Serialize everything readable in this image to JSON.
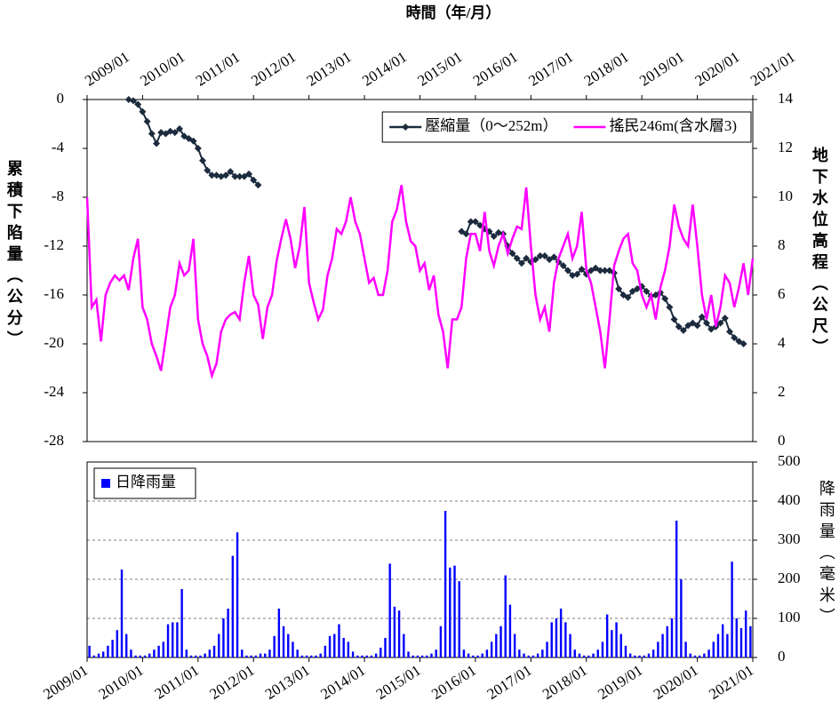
{
  "chart_data": [
    {
      "type": "line",
      "title": "時間（年/月）",
      "y_label": "累積下陷量（公分）",
      "y2_label": "地下水位高程（公尺）",
      "x": [
        "2009/01",
        "2009/02",
        "2009/03",
        "2009/04",
        "2009/05",
        "2009/06",
        "2009/07",
        "2009/08",
        "2009/09",
        "2009/10",
        "2009/11",
        "2009/12",
        "2010/01",
        "2010/02",
        "2010/03",
        "2010/04",
        "2010/05",
        "2010/06",
        "2010/07",
        "2010/08",
        "2010/09",
        "2010/10",
        "2010/11",
        "2010/12",
        "2011/01",
        "2011/02",
        "2011/03",
        "2011/04",
        "2011/05",
        "2011/06",
        "2011/07",
        "2011/08",
        "2011/09",
        "2011/10",
        "2011/11",
        "2011/12",
        "2012/01",
        "2012/02",
        "2012/03",
        "2012/04",
        "2012/05",
        "2012/06",
        "2012/07",
        "2012/08",
        "2012/09",
        "2012/10",
        "2012/11",
        "2012/12",
        "2013/01",
        "2013/02",
        "2013/03",
        "2013/04",
        "2013/05",
        "2013/06",
        "2013/07",
        "2013/08",
        "2013/09",
        "2013/10",
        "2013/11",
        "2013/12",
        "2014/01",
        "2014/02",
        "2014/03",
        "2014/04",
        "2014/05",
        "2014/06",
        "2014/07",
        "2014/08",
        "2014/09",
        "2014/10",
        "2014/11",
        "2014/12",
        "2015/01",
        "2015/02",
        "2015/03",
        "2015/04",
        "2015/05",
        "2015/06",
        "2015/07",
        "2015/08",
        "2015/09",
        "2015/10",
        "2015/11",
        "2015/12",
        "2016/01",
        "2016/02",
        "2016/03",
        "2016/04",
        "2016/05",
        "2016/06",
        "2016/07",
        "2016/08",
        "2016/09",
        "2016/10",
        "2016/11",
        "2016/12",
        "2017/01",
        "2017/02",
        "2017/03",
        "2017/04",
        "2017/05",
        "2017/06",
        "2017/07",
        "2017/08",
        "2017/09",
        "2017/10",
        "2017/11",
        "2017/12",
        "2018/01",
        "2018/02",
        "2018/03",
        "2018/04",
        "2018/05",
        "2018/06",
        "2018/07",
        "2018/08",
        "2018/09",
        "2018/10",
        "2018/11",
        "2018/12",
        "2019/01",
        "2019/02",
        "2019/03",
        "2019/04",
        "2019/05",
        "2019/06",
        "2019/07",
        "2019/08",
        "2019/09",
        "2019/10",
        "2019/11",
        "2019/12",
        "2020/01",
        "2020/02",
        "2020/03",
        "2020/04",
        "2020/05",
        "2020/06",
        "2020/07",
        "2020/08",
        "2020/09",
        "2020/10",
        "2020/11",
        "2020/12",
        "2021/01"
      ],
      "xlim": [
        "2009/01",
        "2021/01"
      ],
      "xticks": [
        "2009/01",
        "2010/01",
        "2011/01",
        "2012/01",
        "2013/01",
        "2014/01",
        "2015/01",
        "2016/01",
        "2017/01",
        "2018/01",
        "2019/01",
        "2020/01",
        "2021/01"
      ],
      "xaxis_position": "top",
      "ylim": [
        -28,
        0
      ],
      "yticks": [
        -28,
        -24,
        -20,
        -16,
        -12,
        -8,
        -4,
        0
      ],
      "y2lim": [
        0,
        14
      ],
      "y2ticks": [
        0,
        2,
        4,
        6,
        8,
        10,
        12,
        14
      ],
      "legend": "upper right",
      "series": [
        {
          "name": "壓縮量（0～252m）",
          "color": "#1c2b3e",
          "marker": "diamond",
          "values": [
            null,
            null,
            null,
            null,
            null,
            null,
            null,
            null,
            null,
            0,
            -0.1,
            -0.4,
            -1.0,
            -1.8,
            -2.8,
            -3.6,
            -2.7,
            -2.8,
            -2.6,
            -2.7,
            -2.4,
            -3.0,
            -3.2,
            -3.4,
            -4.0,
            -5.0,
            -5.8,
            -6.2,
            -6.2,
            -6.3,
            -6.2,
            -5.9,
            -6.3,
            -6.3,
            -6.3,
            -6.1,
            -6.6,
            -7.0,
            null,
            null,
            null,
            null,
            null,
            null,
            null,
            null,
            null,
            null,
            null,
            null,
            null,
            null,
            null,
            null,
            null,
            null,
            null,
            null,
            null,
            null,
            null,
            null,
            null,
            null,
            null,
            null,
            null,
            null,
            null,
            null,
            null,
            null,
            null,
            null,
            null,
            null,
            null,
            null,
            null,
            null,
            null,
            -10.8,
            -11.0,
            -10.0,
            -10.0,
            -10.3,
            -10.6,
            -10.8,
            -11.2,
            -10.9,
            -11.0,
            -12.0,
            -12.6,
            -13.0,
            -13.4,
            -13.0,
            -13.3,
            -13.1,
            -12.8,
            -12.8,
            -13.1,
            -12.9,
            -13.3,
            -13.6,
            -14.0,
            -14.4,
            -14.3,
            -13.9,
            -14.3,
            -14.0,
            -13.8,
            -14.0,
            -14.0,
            -14.0,
            -14.2,
            -15.5,
            -16.0,
            -16.2,
            -15.7,
            -15.5,
            -15.3,
            -15.7,
            -16.1,
            -16.0,
            -15.8,
            -16.3,
            -17.0,
            -18.0,
            -18.6,
            -18.9,
            -18.5,
            -18.3,
            -18.5,
            -17.8,
            -18.3,
            -18.8,
            -18.6,
            -18.3,
            -17.9,
            -19.0,
            -19.5,
            -19.8,
            -20.0,
            null,
            null
          ]
        },
        {
          "name": "搖民246m(含水層3)",
          "color": "#ff00ff",
          "axis": "y2",
          "values": [
            10,
            5.5,
            5.8,
            4.1,
            6,
            6.5,
            6.8,
            6.6,
            6.8,
            6.2,
            7.5,
            8.3,
            5.5,
            5,
            4,
            3.5,
            2.9,
            4.2,
            5.5,
            6,
            7.3,
            6.8,
            7,
            8.3,
            5,
            4,
            3.5,
            2.7,
            3.2,
            4.5,
            5,
            5.2,
            5.3,
            5,
            6.5,
            7.6,
            6,
            5.6,
            4.2,
            5.5,
            6,
            7.4,
            8.3,
            9.1,
            8.3,
            7.1,
            8,
            9.6,
            6.5,
            5.7,
            5,
            5.4,
            6.8,
            7.5,
            8.7,
            8.5,
            9,
            10,
            9,
            8.5,
            7.5,
            6.5,
            6.7,
            6,
            6,
            7,
            9,
            9.5,
            10.5,
            9,
            8.2,
            8,
            7,
            7.3,
            6.2,
            6.8,
            5.2,
            4.5,
            3,
            5,
            5,
            5.5,
            7.5,
            8.5,
            8.5,
            7.8,
            9.4,
            7.8,
            7.2,
            8,
            8.5,
            7.7,
            8.3,
            8.8,
            8.7,
            10.4,
            8,
            6,
            5,
            5.5,
            4.5,
            6.5,
            7.5,
            8,
            8.5,
            7.5,
            8,
            9.4,
            7,
            6.5,
            5.5,
            4.5,
            3,
            5,
            7.2,
            7.8,
            8.3,
            8.5,
            7.3,
            7,
            6,
            5.5,
            6,
            5,
            6.3,
            7,
            8,
            9.7,
            8.8,
            8.3,
            8,
            9.7,
            8,
            6,
            5,
            6,
            4.7,
            5.5,
            6.8,
            6.5,
            5.5,
            6.3,
            7.3,
            6,
            7.5
          ]
        }
      ]
    },
    {
      "type": "bar",
      "y2_label": "降雨量（毫米）",
      "x": [
        "2009/01",
        "2009/02",
        "2009/03",
        "2009/04",
        "2009/05",
        "2009/06",
        "2009/07",
        "2009/08",
        "2009/09",
        "2009/10",
        "2009/11",
        "2009/12",
        "2010/01",
        "2010/02",
        "2010/03",
        "2010/04",
        "2010/05",
        "2010/06",
        "2010/07",
        "2010/08",
        "2010/09",
        "2010/10",
        "2010/11",
        "2010/12",
        "2011/01",
        "2011/02",
        "2011/03",
        "2011/04",
        "2011/05",
        "2011/06",
        "2011/07",
        "2011/08",
        "2011/09",
        "2011/10",
        "2011/11",
        "2011/12",
        "2012/01",
        "2012/02",
        "2012/03",
        "2012/04",
        "2012/05",
        "2012/06",
        "2012/07",
        "2012/08",
        "2012/09",
        "2012/10",
        "2012/11",
        "2012/12",
        "2013/01",
        "2013/02",
        "2013/03",
        "2013/04",
        "2013/05",
        "2013/06",
        "2013/07",
        "2013/08",
        "2013/09",
        "2013/10",
        "2013/11",
        "2013/12",
        "2014/01",
        "2014/02",
        "2014/03",
        "2014/04",
        "2014/05",
        "2014/06",
        "2014/07",
        "2014/08",
        "2014/09",
        "2014/10",
        "2014/11",
        "2014/12",
        "2015/01",
        "2015/02",
        "2015/03",
        "2015/04",
        "2015/05",
        "2015/06",
        "2015/07",
        "2015/08",
        "2015/09",
        "2015/10",
        "2015/11",
        "2015/12",
        "2016/01",
        "2016/02",
        "2016/03",
        "2016/04",
        "2016/05",
        "2016/06",
        "2016/07",
        "2016/08",
        "2016/09",
        "2016/10",
        "2016/11",
        "2016/12",
        "2017/01",
        "2017/02",
        "2017/03",
        "2017/04",
        "2017/05",
        "2017/06",
        "2017/07",
        "2017/08",
        "2017/09",
        "2017/10",
        "2017/11",
        "2017/12",
        "2018/01",
        "2018/02",
        "2018/03",
        "2018/04",
        "2018/05",
        "2018/06",
        "2018/07",
        "2018/08",
        "2018/09",
        "2018/10",
        "2018/11",
        "2018/12",
        "2019/01",
        "2019/02",
        "2019/03",
        "2019/04",
        "2019/05",
        "2019/06",
        "2019/07",
        "2019/08",
        "2019/09",
        "2019/10",
        "2019/11",
        "2019/12",
        "2020/01",
        "2020/02",
        "2020/03",
        "2020/04",
        "2020/05",
        "2020/06",
        "2020/07",
        "2020/08",
        "2020/09",
        "2020/10",
        "2020/11",
        "2020/12"
      ],
      "xlim": [
        "2009/01",
        "2021/01"
      ],
      "xticks": [
        "2009/01",
        "2010/01",
        "2011/01",
        "2012/01",
        "2013/01",
        "2014/01",
        "2015/01",
        "2016/01",
        "2017/01",
        "2018/01",
        "2019/01",
        "2020/01",
        "2021/01"
      ],
      "xaxis_position": "bottom",
      "y2lim": [
        0,
        500
      ],
      "y2ticks": [
        0,
        100,
        200,
        300,
        400,
        500
      ],
      "grid": true,
      "legend": "upper left",
      "series": [
        {
          "name": "日降雨量",
          "color": "#0000ff",
          "axis": "y2",
          "values": [
            30,
            5,
            10,
            15,
            30,
            45,
            70,
            225,
            60,
            20,
            5,
            5,
            5,
            10,
            20,
            30,
            40,
            85,
            90,
            90,
            175,
            20,
            5,
            5,
            5,
            10,
            20,
            30,
            60,
            100,
            125,
            260,
            320,
            20,
            5,
            5,
            5,
            10,
            10,
            20,
            55,
            125,
            80,
            60,
            40,
            20,
            5,
            5,
            5,
            5,
            10,
            30,
            55,
            60,
            85,
            50,
            40,
            15,
            5,
            5,
            5,
            5,
            10,
            25,
            50,
            240,
            130,
            120,
            60,
            15,
            5,
            5,
            5,
            5,
            10,
            20,
            80,
            375,
            230,
            235,
            195,
            20,
            10,
            5,
            5,
            10,
            20,
            40,
            60,
            80,
            210,
            135,
            60,
            20,
            10,
            5,
            5,
            10,
            20,
            40,
            90,
            100,
            125,
            90,
            60,
            20,
            10,
            5,
            5,
            10,
            20,
            40,
            110,
            70,
            90,
            60,
            30,
            10,
            5,
            5,
            5,
            10,
            20,
            40,
            60,
            80,
            100,
            350,
            200,
            40,
            10,
            5,
            5,
            10,
            20,
            40,
            60,
            85,
            60,
            245,
            100,
            75,
            120,
            80
          ]
        }
      ]
    }
  ]
}
